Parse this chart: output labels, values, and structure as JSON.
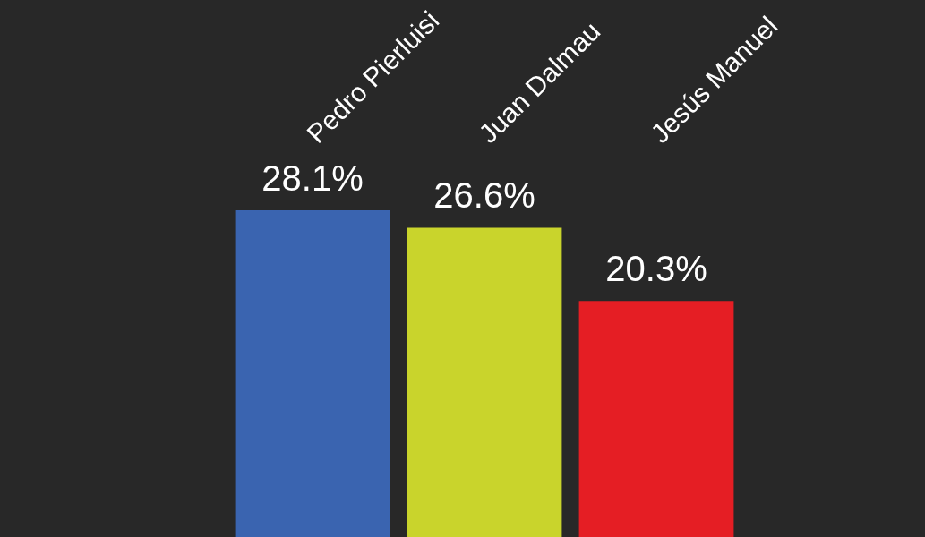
{
  "chart_data": {
    "type": "bar",
    "categories": [
      "Pedro Pierluisi",
      "Juan Dalmau",
      "Jesús Manuel"
    ],
    "values": [
      28.1,
      26.6,
      20.3
    ],
    "colors": [
      "#3a64b0",
      "#c9d42c",
      "#e51e24"
    ],
    "value_labels": [
      "28.1%",
      "26.6%",
      "20.3%"
    ]
  }
}
